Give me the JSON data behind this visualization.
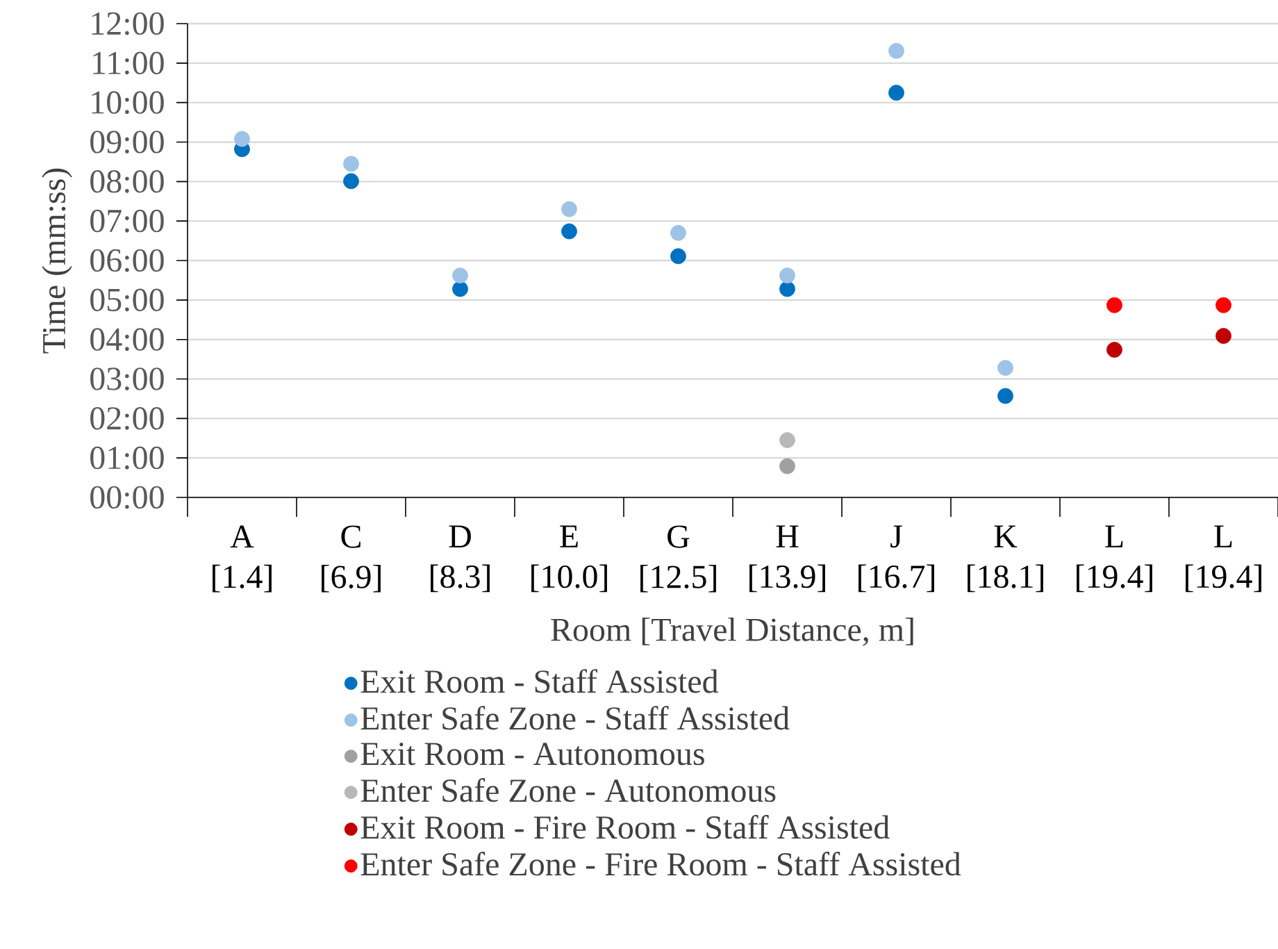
{
  "chart_data": {
    "type": "scatter",
    "xlabel": "Room [Travel Distance, m]",
    "ylabel": "Time (mm:ss)",
    "categories": [
      "A [1.4]",
      "C [6.9]",
      "D [8.3]",
      "E [10.0]",
      "G [12.5]",
      "H [13.9]",
      "J [16.7]",
      "K [18.1]",
      "L [19.4]",
      "L [19.4]"
    ],
    "ylim": [
      0,
      12
    ],
    "yticks": [
      {
        "value": 0,
        "label": "00:00"
      },
      {
        "value": 1,
        "label": "01:00"
      },
      {
        "value": 2,
        "label": "02:00"
      },
      {
        "value": 3,
        "label": "03:00"
      },
      {
        "value": 4,
        "label": "04:00"
      },
      {
        "value": 5,
        "label": "05:00"
      },
      {
        "value": 6,
        "label": "06:00"
      },
      {
        "value": 7,
        "label": "07:00"
      },
      {
        "value": 8,
        "label": "08:00"
      },
      {
        "value": 9,
        "label": "09:00"
      },
      {
        "value": 10,
        "label": "10:00"
      },
      {
        "value": 11,
        "label": "11:00"
      },
      {
        "value": 12,
        "label": "12:00"
      }
    ],
    "grid": "y",
    "legend": "bottom",
    "series": [
      {
        "name": "Exit Room - Staff Assisted",
        "color": "#0070c0",
        "values": [
          8.82,
          8.01,
          5.28,
          6.74,
          6.11,
          5.28,
          10.25,
          2.57,
          null,
          null
        ]
      },
      {
        "name": "Enter Safe Zone - Staff Assisted",
        "color": "#9dc3e6",
        "values": [
          9.08,
          8.45,
          5.62,
          7.3,
          6.7,
          5.62,
          11.31,
          3.28,
          null,
          null
        ]
      },
      {
        "name": "Exit Room - Autonomous",
        "color": "#a0a0a0",
        "values": [
          null,
          null,
          null,
          null,
          null,
          0.79,
          null,
          null,
          null,
          null
        ]
      },
      {
        "name": "Enter Safe Zone - Autonomous",
        "color": "#b8b8b8",
        "values": [
          null,
          null,
          null,
          null,
          null,
          1.45,
          null,
          null,
          null,
          null
        ]
      },
      {
        "name": "Exit Room - Fire Room - Staff Assisted",
        "color": "#c00000",
        "values": [
          null,
          null,
          null,
          null,
          null,
          null,
          null,
          null,
          3.74,
          4.09
        ]
      },
      {
        "name": "Enter Safe Zone - Fire Room - Staff Assisted",
        "color": "#ff0000",
        "values": [
          null,
          null,
          null,
          null,
          null,
          null,
          null,
          null,
          4.87,
          4.87
        ]
      }
    ]
  }
}
